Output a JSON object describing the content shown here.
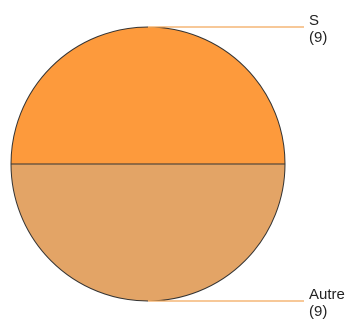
{
  "chart_data": {
    "type": "pie",
    "title": "",
    "slices": [
      {
        "label": "S",
        "value": 9,
        "value_text": "(9)",
        "color": "#fd9a3c"
      },
      {
        "label": "Autre",
        "value": 9,
        "value_text": "(9)",
        "color": "#e3a466"
      }
    ],
    "leader_line_color": "#f2a85a",
    "edge_color": "#333333"
  }
}
